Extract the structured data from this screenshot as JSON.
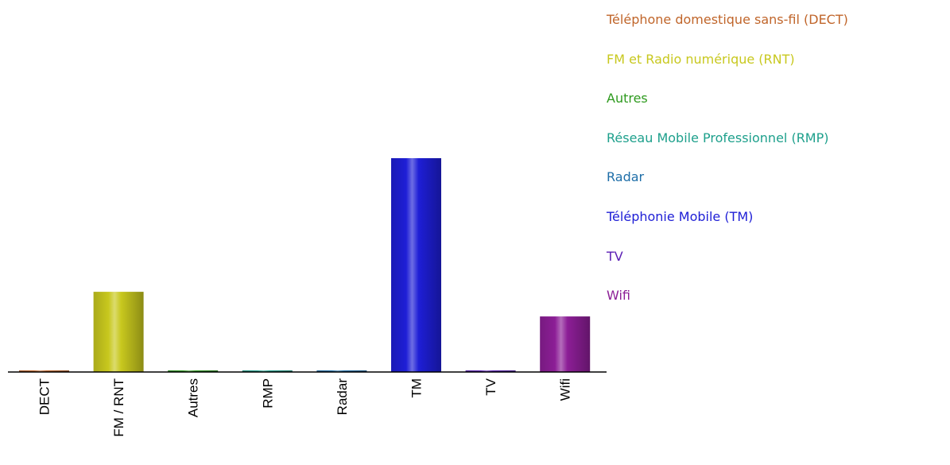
{
  "chart_data": {
    "type": "bar",
    "categories": [
      "DECT",
      "FM / RNT",
      "Autres",
      "RMP",
      "Radar",
      "TM",
      "TV",
      "Wifi"
    ],
    "values": [
      0.5,
      37.5,
      0.3,
      0.3,
      0.3,
      100,
      0.5,
      26
    ],
    "ylim": [
      0,
      100
    ],
    "grid": false,
    "legend_position": "right",
    "legend": [
      {
        "label": "Téléphone domestique sans-fil (DECT)",
        "color": "#c0652a"
      },
      {
        "label": "FM et Radio numérique (RNT)",
        "color": "#c8c81e"
      },
      {
        "label": "Autres",
        "color": "#2e9a1e"
      },
      {
        "label": "Réseau Mobile Professionnel (RMP)",
        "color": "#1ea08c"
      },
      {
        "label": "Radar",
        "color": "#1e6ea8"
      },
      {
        "label": "Téléphonie Mobile (TM)",
        "color": "#1e1ed6"
      },
      {
        "label": "TV",
        "color": "#5a1eb4"
      },
      {
        "label": "Wifi",
        "color": "#8c1e96"
      }
    ]
  }
}
